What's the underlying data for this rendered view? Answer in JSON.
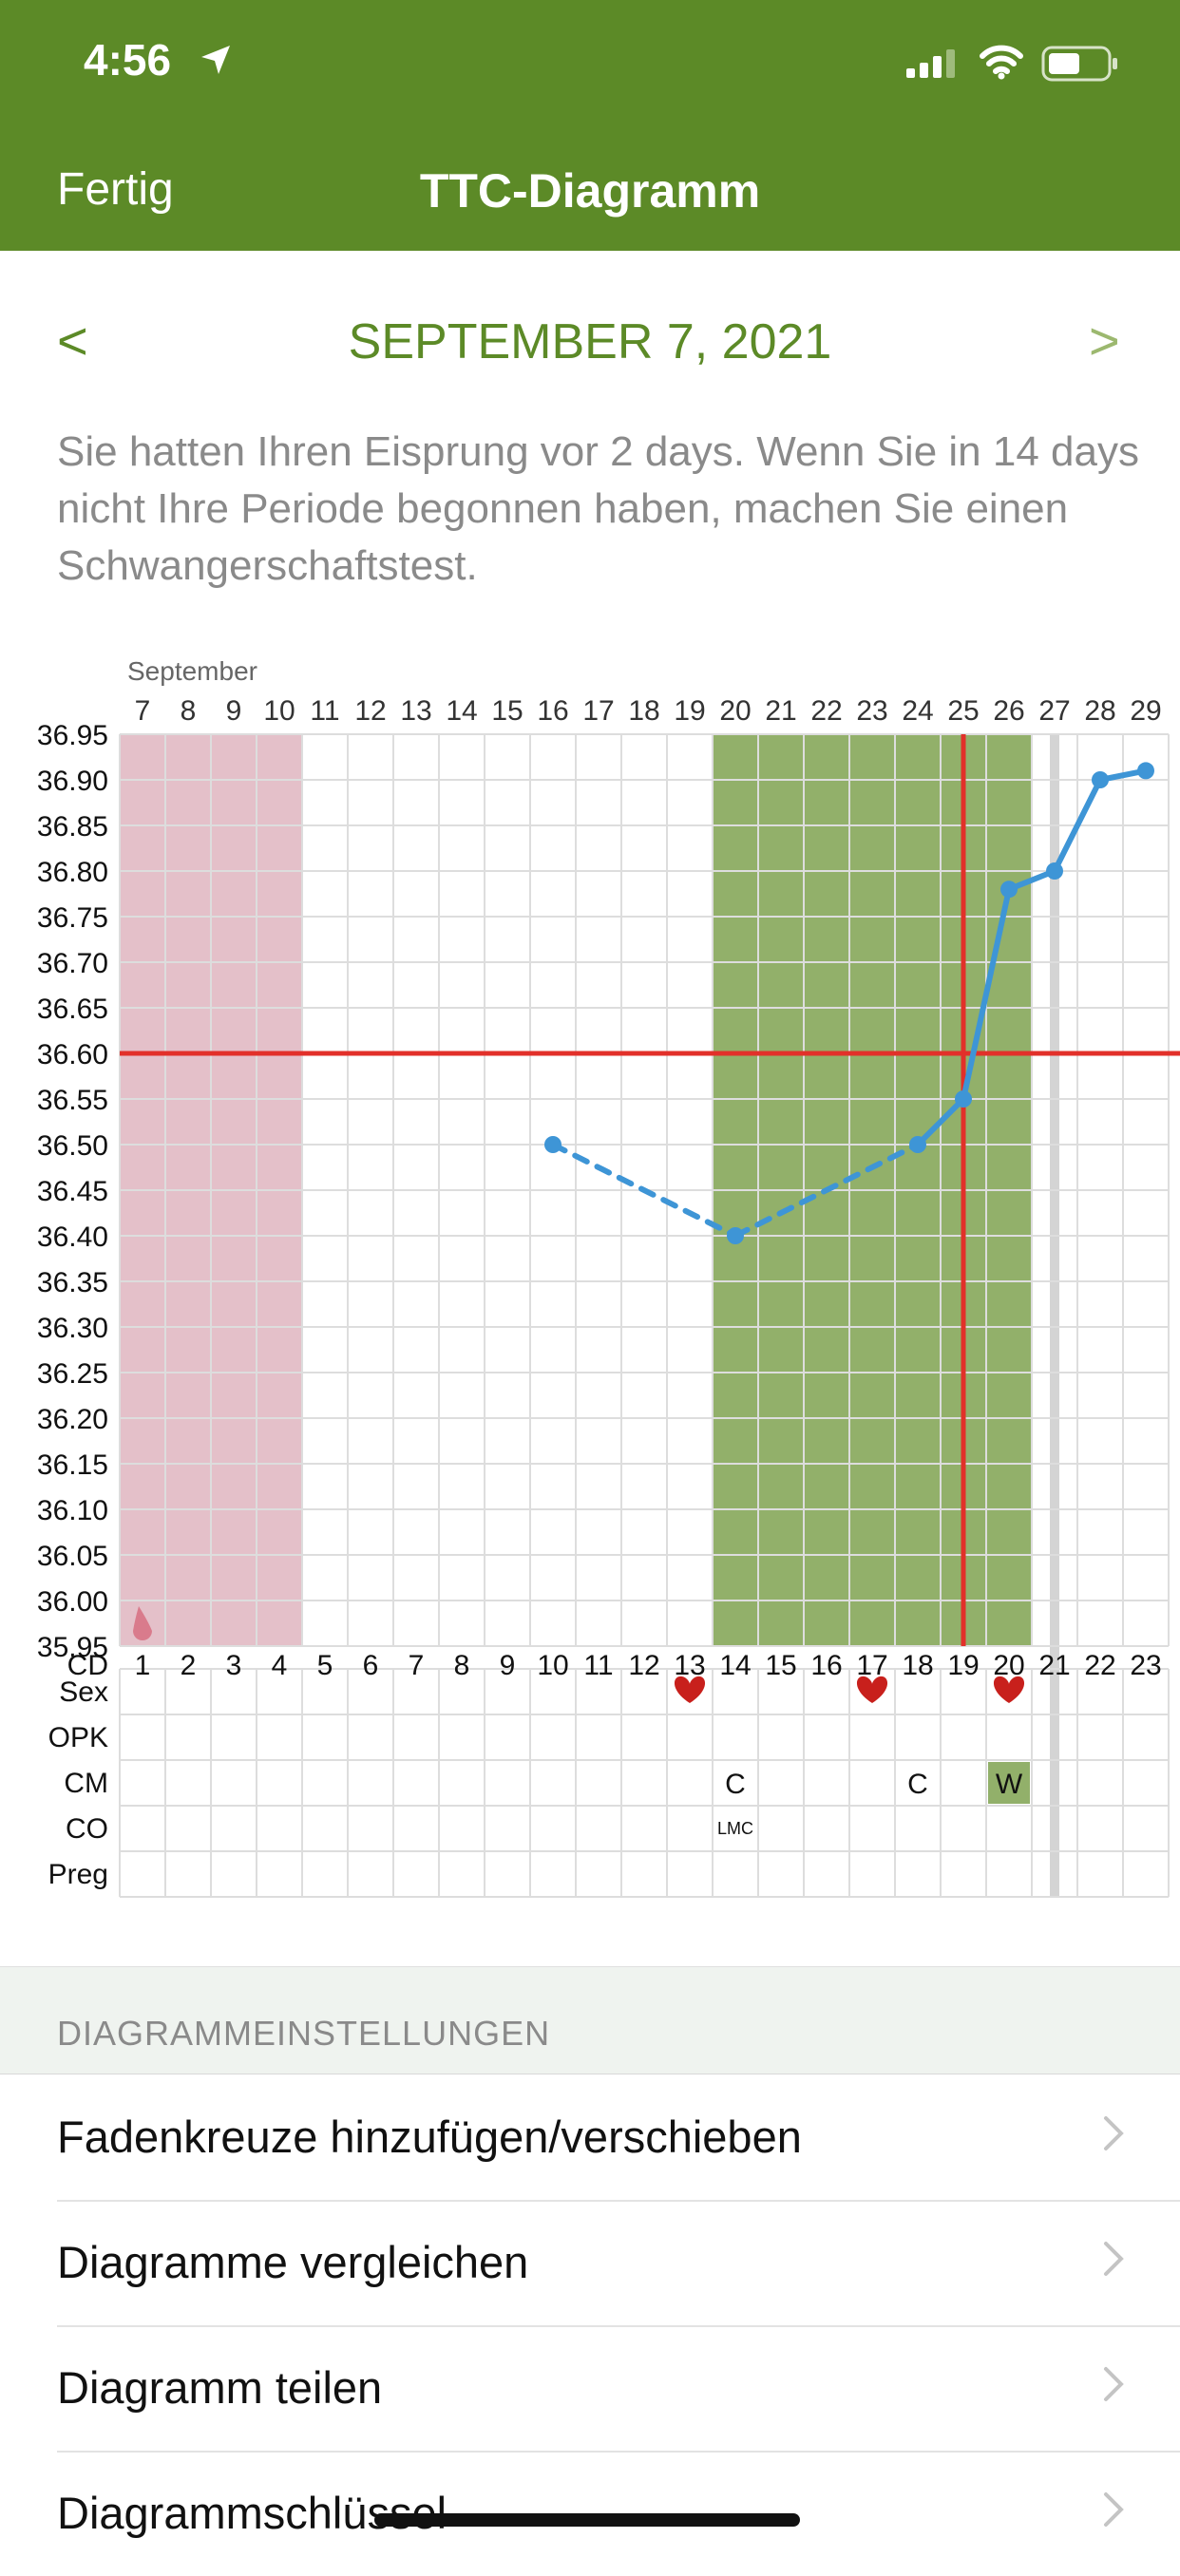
{
  "status_bar": {
    "time": "4:56"
  },
  "nav": {
    "done_label": "Fertig",
    "title": "TTC-Diagramm"
  },
  "date_nav": {
    "prev": "<",
    "next": ">",
    "date": "SEPTEMBER 7, 2021"
  },
  "message": "Sie hatten Ihren Eisprung vor 2 days. Wenn Sie in 14 days nicht Ihre Periode begonnen haben, machen Sie einen Schwangerschaftstest.",
  "chart_data": {
    "type": "line",
    "month_label": "September",
    "dates": [
      "7",
      "8",
      "9",
      "10",
      "11",
      "12",
      "13",
      "14",
      "15",
      "16",
      "17",
      "18",
      "19",
      "20",
      "21",
      "22",
      "23",
      "24",
      "25",
      "26",
      "27",
      "28",
      "29"
    ],
    "cycle_days": [
      "1",
      "2",
      "3",
      "4",
      "5",
      "6",
      "7",
      "8",
      "9",
      "10",
      "11",
      "12",
      "13",
      "14",
      "15",
      "16",
      "17",
      "18",
      "19",
      "20",
      "21",
      "22",
      "23"
    ],
    "y_ticks": [
      "36.95",
      "36.90",
      "36.85",
      "36.80",
      "36.75",
      "36.70",
      "36.65",
      "36.60",
      "36.55",
      "36.50",
      "36.45",
      "36.40",
      "36.35",
      "36.30",
      "36.25",
      "36.20",
      "36.15",
      "36.10",
      "36.05",
      "36.00",
      "35.95"
    ],
    "ylim": [
      35.95,
      36.95
    ],
    "temperature_points": [
      {
        "cd": 10,
        "temp": 36.5
      },
      {
        "cd": 14,
        "temp": 36.4
      },
      {
        "cd": 18,
        "temp": 36.5
      },
      {
        "cd": 19,
        "temp": 36.55
      },
      {
        "cd": 20,
        "temp": 36.78
      },
      {
        "cd": 21,
        "temp": 36.8
      },
      {
        "cd": 22,
        "temp": 36.9
      },
      {
        "cd": 23,
        "temp": 36.91
      }
    ],
    "dashed_until_cd": 18,
    "coverline_temp": 36.6,
    "ovulation_line_cd": 19,
    "today_cd": 21,
    "period_days": [
      1,
      4
    ],
    "fertile_window_days": [
      14,
      20
    ],
    "row_labels": [
      "CD",
      "Sex",
      "OPK",
      "CM",
      "CO",
      "Preg"
    ],
    "sex_days": [
      13,
      17,
      20
    ],
    "cm_entries": [
      {
        "cd": 14,
        "text": "C",
        "highlight": false
      },
      {
        "cd": 18,
        "text": "C",
        "highlight": false
      },
      {
        "cd": 20,
        "text": "W",
        "highlight": true
      }
    ],
    "co_entries": [
      {
        "cd": 14,
        "text": "LMC"
      }
    ],
    "colors": {
      "period": "#e4c0c9",
      "fertile": "#92b06a",
      "line": "#3e95d6",
      "coverline": "#e2302a",
      "today": "#d4d4d4",
      "cm_highlight": "#92b06a",
      "heart": "#c8201c"
    }
  },
  "settings": {
    "header": "DIAGRAMMEINSTELLUNGEN",
    "items": [
      {
        "label": "Fadenkreuze hinzufügen/verschieben"
      },
      {
        "label": "Diagramme vergleichen"
      },
      {
        "label": "Diagramm teilen"
      },
      {
        "label": "Diagrammschlüssel"
      }
    ]
  },
  "icons": {
    "location": "location-arrow-icon",
    "signal": "cellular-signal-icon",
    "wifi": "wifi-icon",
    "battery": "battery-icon",
    "chevron": "chevron-right-icon",
    "heart": "heart-icon",
    "drop": "blood-drop-icon"
  }
}
